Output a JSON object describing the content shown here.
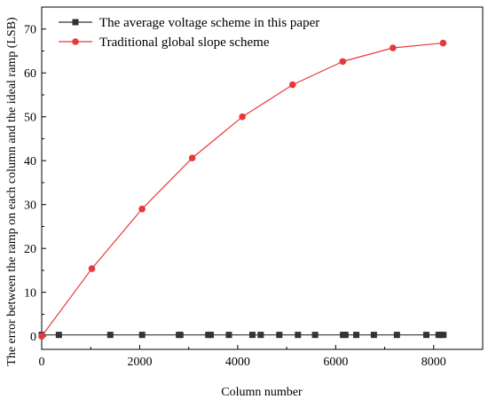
{
  "chart_data": {
    "type": "line",
    "xlabel": "Column number",
    "ylabel": "The error between the ramp on each column and the ideal ramp (LSB)",
    "xlim": [
      0,
      9000
    ],
    "ylim": [
      -3,
      75
    ],
    "xticks": [
      0,
      2000,
      4000,
      6000,
      8000
    ],
    "yticks": [
      0,
      10,
      20,
      30,
      40,
      50,
      60,
      70
    ],
    "grid": false,
    "legend_position": "top-left",
    "series": [
      {
        "name": "The average voltage scheme in this paper",
        "color": "#333333",
        "marker": "square",
        "x": [
          0,
          350,
          1400,
          2050,
          2800,
          2830,
          3400,
          3450,
          3820,
          4300,
          4470,
          4850,
          5230,
          5580,
          6150,
          6200,
          6420,
          6780,
          7250,
          7850,
          8100,
          8150,
          8200
        ],
        "y": [
          0.3,
          0.3,
          0.3,
          0.3,
          0.3,
          0.3,
          0.3,
          0.3,
          0.3,
          0.3,
          0.3,
          0.3,
          0.3,
          0.3,
          0.3,
          0.3,
          0.3,
          0.3,
          0.3,
          0.3,
          0.3,
          0.3,
          0.3
        ]
      },
      {
        "name": "Traditional global slope scheme",
        "color": "#e8393a",
        "marker": "circle",
        "x": [
          0,
          1024,
          2048,
          3072,
          4096,
          5120,
          6144,
          7168,
          8192
        ],
        "y": [
          0,
          15.4,
          29,
          40.6,
          50,
          57.3,
          62.6,
          65.7,
          66.8
        ]
      }
    ]
  }
}
